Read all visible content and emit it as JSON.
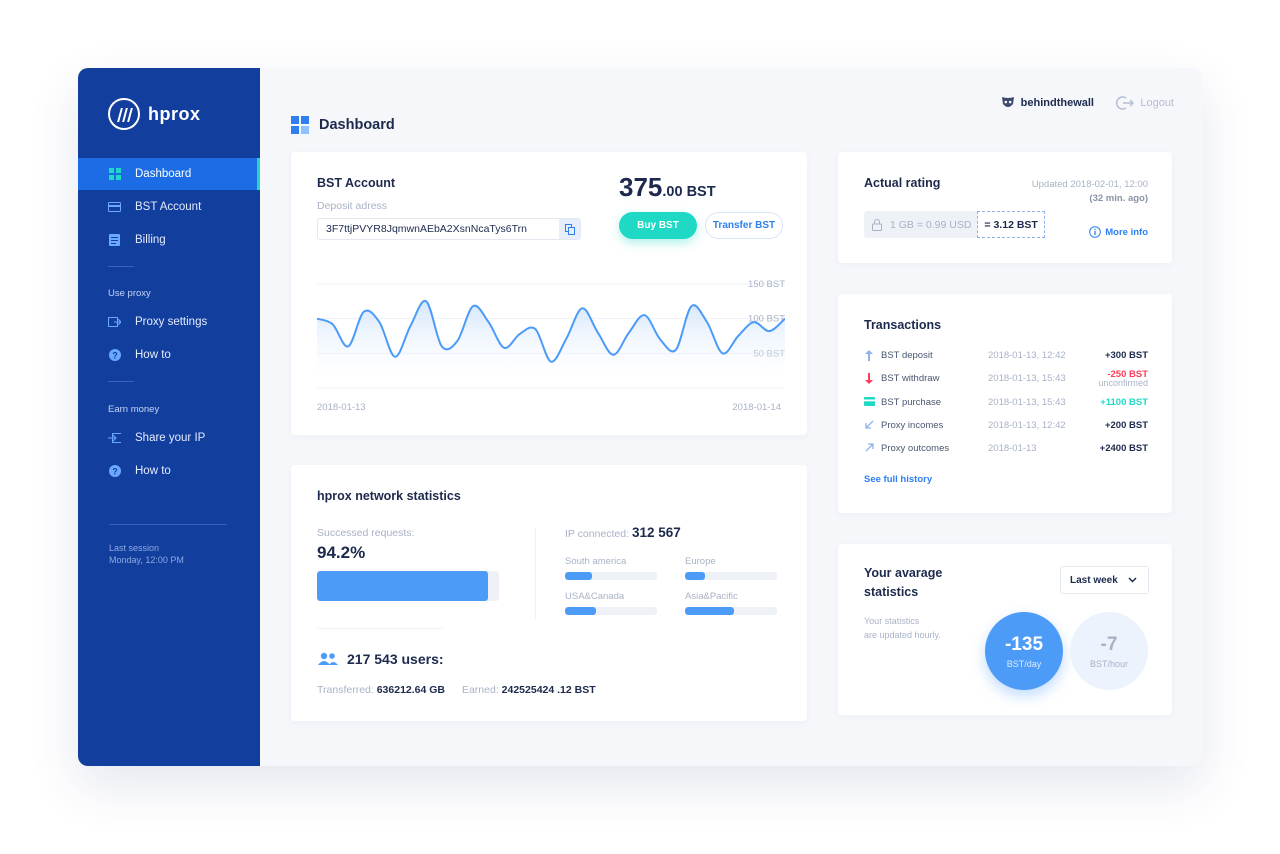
{
  "app": {
    "name": "hprox"
  },
  "colors": {
    "sidebar": "#123f9e",
    "active": "#1c6ce6",
    "accent": "#20d9c4",
    "primary": "#2f7ff0",
    "negative": "#ff3c5a"
  },
  "sidebar": {
    "items": [
      {
        "label": "Dashboard",
        "icon": "grid-icon",
        "active": true
      },
      {
        "label": "BST Account",
        "icon": "card-icon"
      },
      {
        "label": "Billing",
        "icon": "list-icon"
      }
    ],
    "sections": [
      {
        "title": "Use proxy",
        "items": [
          {
            "label": "Proxy settings",
            "icon": "proxy-icon"
          },
          {
            "label": "How to",
            "icon": "help-icon"
          }
        ]
      },
      {
        "title": "Earn money",
        "items": [
          {
            "label": "Share your IP",
            "icon": "share-icon"
          },
          {
            "label": "How to",
            "icon": "help-icon"
          }
        ]
      }
    ],
    "last_session_label": "Last session",
    "last_session_value": "Monday, 12:00 PM"
  },
  "header": {
    "title": "Dashboard",
    "username": "behindthewall",
    "logout": "Logout"
  },
  "bst_account": {
    "title": "BST Account",
    "deposit_label": "Deposit adress",
    "deposit_address": "3F7ttjPVYR8JqmwnAEbA2XsnNcaTys6Trn",
    "balance_int": "375",
    "balance_dec": ".00 BST",
    "buy_label": "Buy BST",
    "transfer_label": "Transfer BST"
  },
  "chart_data": {
    "type": "area",
    "x_start": "2018-01-13",
    "x_end": "2018-01-14",
    "x_tick_labels": [
      "2018-01-13",
      "2018-01-14"
    ],
    "y_tick_labels": [
      "150 BST",
      "100 BST",
      "50 BST"
    ],
    "ylim": [
      0,
      150
    ],
    "values": [
      100,
      92,
      60,
      110,
      95,
      45,
      90,
      125,
      60,
      68,
      118,
      95,
      58,
      78,
      85,
      38,
      72,
      115,
      80,
      48,
      80,
      105,
      70,
      55,
      118,
      95,
      50,
      75,
      95,
      82,
      100
    ],
    "grid": true
  },
  "network": {
    "title": "hprox network statistics",
    "success_label": "Successed requests:",
    "success_value": "94.2%",
    "success_fraction": 0.942,
    "ip_label": "IP connected:",
    "ip_value": "312 567",
    "regions": [
      {
        "name": "South america",
        "fraction": 0.29
      },
      {
        "name": "Europe",
        "fraction": 0.22
      },
      {
        "name": "USA&Canada",
        "fraction": 0.34
      },
      {
        "name": "Asia&Pacific",
        "fraction": 0.53
      }
    ],
    "users": "217 543 users:",
    "transferred_label": "Transferred:",
    "transferred_value": "636212.64 GB",
    "earned_label": "Earned:",
    "earned_value": "242525424 .12 BST"
  },
  "rating": {
    "title": "Actual rating",
    "updated": "Updated 2018-02-01, 12:00",
    "ago": "(32 min. ago)",
    "rate_left": "1 GB = 0.99 USD",
    "rate_right": "= 3.12 BST",
    "more_info": "More info"
  },
  "transactions": {
    "title": "Transactions",
    "rows": [
      {
        "icon": "deposit-icon",
        "name": "BST deposit",
        "date": "2018-01-13, 12:42",
        "amount": "+300 BST",
        "color": "#1d2a4d"
      },
      {
        "icon": "withdraw-icon",
        "name": "BST withdraw",
        "date": "2018-01-13, 15:43",
        "amount": "-250 BST",
        "note": "unconfirmed",
        "color": "#ff3c5a"
      },
      {
        "icon": "purchase-icon",
        "name": "BST purchase",
        "date": "2018-01-13, 15:43",
        "amount": "+1100 BST",
        "color": "#20d9c4"
      },
      {
        "icon": "income-icon",
        "name": "Proxy incomes",
        "date": "2018-01-13, 12:42",
        "amount": "+200 BST",
        "color": "#1d2a4d"
      },
      {
        "icon": "outcome-icon",
        "name": "Proxy outcomes",
        "date": "2018-01-13",
        "amount": "+2400 BST",
        "color": "#1d2a4d"
      }
    ],
    "see_history": "See full history"
  },
  "average": {
    "title": "Your avarage statistics",
    "note_line1": "Your statistics",
    "note_line2": "are updated hourly.",
    "period": "Last week",
    "day_value": "-135",
    "day_unit": "BST/day",
    "hour_value": "-7",
    "hour_unit": "BST/hour"
  }
}
